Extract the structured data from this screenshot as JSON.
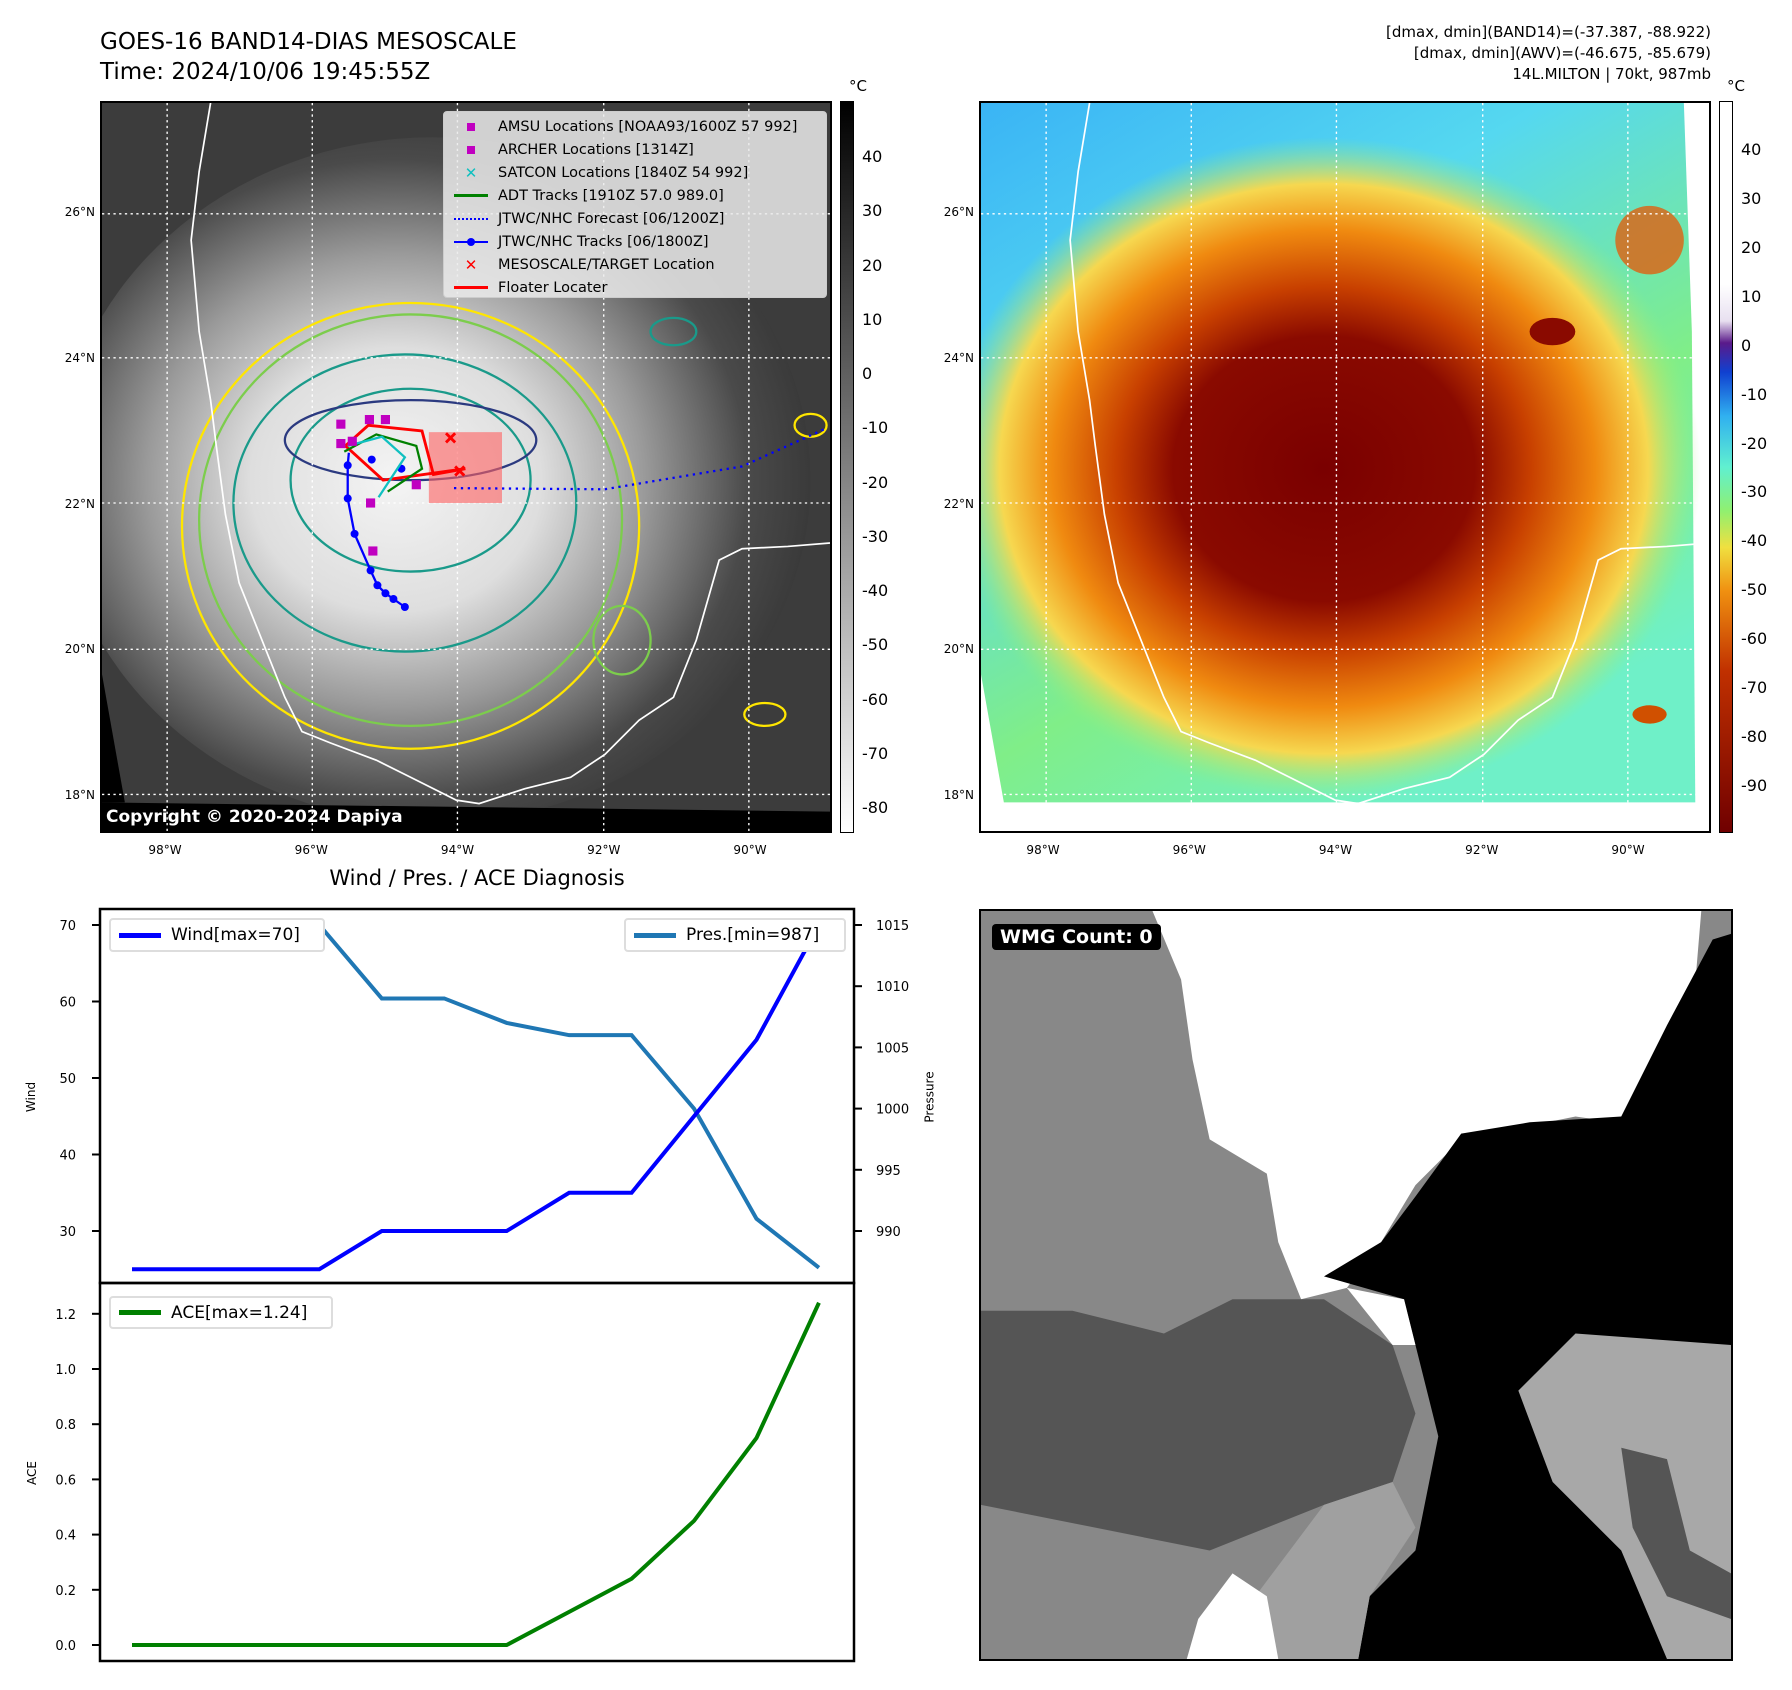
{
  "header": {
    "title": "GOES-16 BAND14-DIAS MESOSCALE",
    "time": "Time: 2024/10/06 19:45:55Z",
    "dmax_band14": "[dmax, dmin](BAND14)=(-37.387, -88.922)",
    "dmax_awv": "[dmax, dmin](AWV)=(-46.675, -85.679)",
    "storm": "14L.MILTON | 70kt, 987mb"
  },
  "maps": {
    "lat_labels": [
      "26°N",
      "24°N",
      "22°N",
      "20°N",
      "18°N"
    ],
    "lat_values": [
      26,
      24,
      22,
      20,
      18
    ],
    "lon_labels": [
      "98°W",
      "96°W",
      "94°W",
      "92°W",
      "90°W"
    ],
    "lon_values": [
      98,
      96,
      94,
      92,
      90
    ],
    "copyright": "Copyright © 2020-2024 Dapiya",
    "colorbar_unit": "°C",
    "colorbar1_ticks": [
      40,
      30,
      20,
      10,
      0,
      -10,
      -20,
      -30,
      -40,
      -50,
      -60,
      -70,
      -80
    ],
    "colorbar2_ticks": [
      40,
      30,
      20,
      10,
      0,
      -10,
      -20,
      -30,
      -40,
      -50,
      -60,
      -70,
      -80,
      -90
    ],
    "legend": [
      {
        "label": "AMSU Locations [NOAA93/1600Z 57 992]",
        "symbol": "square",
        "color": "#c000c0"
      },
      {
        "label": "ARCHER Locations [1314Z]",
        "symbol": "square",
        "color": "#c000c0"
      },
      {
        "label": "SATCON Locations [1840Z 54 992]",
        "symbol": "x",
        "color": "#10c0c0"
      },
      {
        "label": "ADT Tracks [1910Z 57.0 989.0]",
        "symbol": "line",
        "color": "#008000"
      },
      {
        "label": "JTWC/NHC Forecast [06/1200Z]",
        "symbol": "dotted",
        "color": "#0000ff"
      },
      {
        "label": "JTWC/NHC Tracks [06/1800Z]",
        "symbol": "line-dot",
        "color": "#0000ff"
      },
      {
        "label": "MESOSCALE/TARGET Location",
        "symbol": "x",
        "color": "#ff0000"
      },
      {
        "label": "Floater Locater",
        "symbol": "line",
        "color": "#ff0000"
      }
    ],
    "wmg_count": "WMG Count: 0"
  },
  "chart_data": [
    {
      "type": "line",
      "title": "Wind / Pres. / ACE Diagnosis",
      "x": [
        0,
        1,
        2,
        3,
        4,
        5,
        6,
        7,
        8,
        9,
        10,
        11
      ],
      "series": [
        {
          "name": "Wind[max=70]",
          "axis": "left",
          "color": "#0000ff",
          "values": [
            25,
            25,
            25,
            25,
            30,
            30,
            30,
            35,
            35,
            45,
            55,
            70
          ]
        },
        {
          "name": "Pres.[min=987]",
          "axis": "right",
          "color": "#1f77b4",
          "values": [
            1015,
            1015,
            1015,
            1015,
            1009,
            1009,
            1007,
            1006,
            1006,
            1000,
            991,
            987
          ]
        }
      ],
      "ylabel": "Wind",
      "y2label": "Pressure",
      "yticks": [
        30,
        40,
        50,
        60,
        70
      ],
      "y2ticks": [
        990,
        995,
        1000,
        1005,
        1010,
        1015
      ],
      "legend": [
        "top-left",
        "top-right"
      ]
    },
    {
      "type": "line",
      "x": [
        0,
        1,
        2,
        3,
        4,
        5,
        6,
        7,
        8,
        9,
        10,
        11
      ],
      "series": [
        {
          "name": "ACE[max=1.24]",
          "color": "#008000",
          "values": [
            0,
            0,
            0,
            0,
            0,
            0,
            0,
            0.12,
            0.24,
            0.45,
            0.75,
            1.24
          ]
        }
      ],
      "ylabel": "ACE",
      "yticks": [
        "0.0",
        "0.2",
        "0.4",
        "0.6",
        "0.8",
        "1.0",
        "1.2"
      ],
      "legend": "top-left"
    }
  ]
}
